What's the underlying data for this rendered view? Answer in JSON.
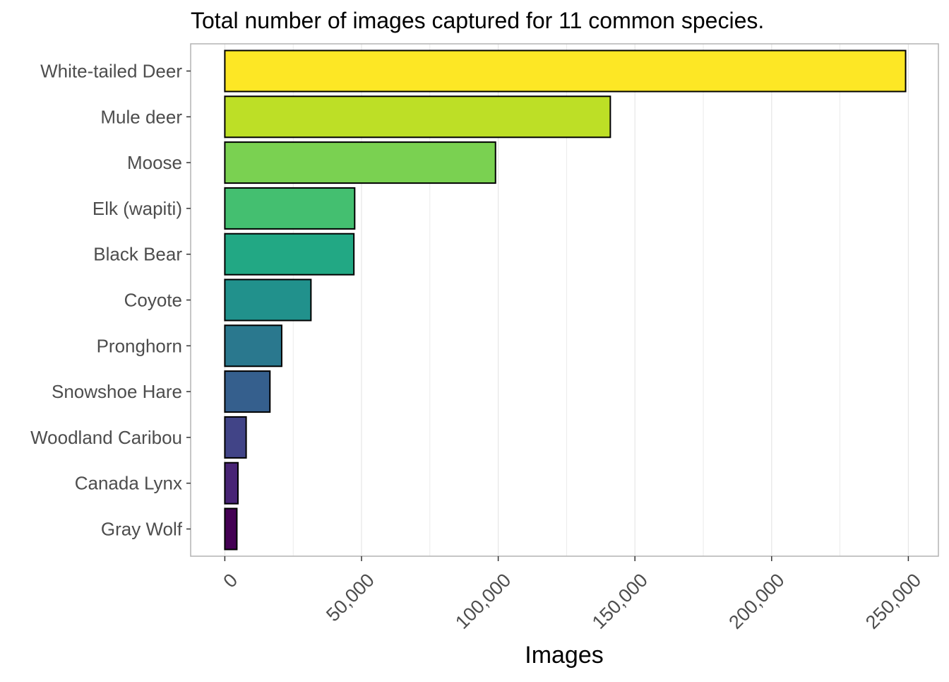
{
  "chart_data": {
    "type": "bar",
    "orientation": "horizontal",
    "title": "Total number of images captured for 11 common species.",
    "xlabel": "Images",
    "ylabel": "",
    "xlim": [
      -12500,
      261000
    ],
    "x_ticks": [
      0,
      50000,
      100000,
      150000,
      200000,
      250000
    ],
    "x_tick_labels": [
      "0",
      "50,000",
      "100,000",
      "150,000",
      "200,000",
      "250,000"
    ],
    "grid": true,
    "legend": "none",
    "categories": [
      "White-tailed Deer",
      "Mule deer",
      "Moose",
      "Elk (wapiti)",
      "Black Bear",
      "Coyote",
      "Pronghorn",
      "Snowshoe Hare",
      "Woodland Caribou",
      "Canada Lynx",
      "Gray Wolf"
    ],
    "values": [
      249000,
      141000,
      99000,
      47500,
      47200,
      31500,
      20800,
      16500,
      7800,
      4800,
      4400
    ],
    "colors": [
      "#fde725",
      "#bddf26",
      "#7ad151",
      "#44bf70",
      "#22a884",
      "#21918c",
      "#2a788e",
      "#355f8d",
      "#414487",
      "#482475",
      "#440154"
    ],
    "bar_outline": "#000000",
    "panel_border": "#b3b3b3",
    "grid_color": "#e6e6e6"
  }
}
